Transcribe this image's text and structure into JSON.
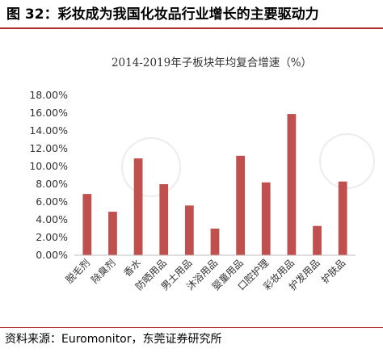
{
  "figure_title": "图 32：彩妆成为我国化妆品行业增长的主要驱动力",
  "source_note": "资料来源：Euromonitor，东莞证券研究所",
  "colors": {
    "bar": "#c0504d",
    "accent_rule": "#b22a2e",
    "axis": "#bfbfbf"
  },
  "chart_data": {
    "type": "bar",
    "title": "2014-2019年子板块年均复合增速（%）",
    "xlabel": "",
    "ylabel": "",
    "categories": [
      "脱毛剂",
      "除臭剂",
      "香水",
      "防晒用品",
      "男士用品",
      "沐浴用品",
      "婴童用品",
      "口腔护理",
      "彩妆用品",
      "护发用品",
      "护肤品"
    ],
    "values": [
      6.9,
      4.9,
      10.9,
      8.0,
      5.6,
      3.0,
      11.2,
      8.2,
      15.9,
      3.3,
      8.3
    ],
    "ylim": [
      0,
      18
    ],
    "ytick_step": 2,
    "ytick_labels": [
      "0.00%",
      "2.00%",
      "4.00%",
      "6.00%",
      "8.00%",
      "10.00%",
      "12.00%",
      "14.00%",
      "16.00%",
      "18.00%"
    ],
    "grid": false,
    "legend": "none"
  }
}
